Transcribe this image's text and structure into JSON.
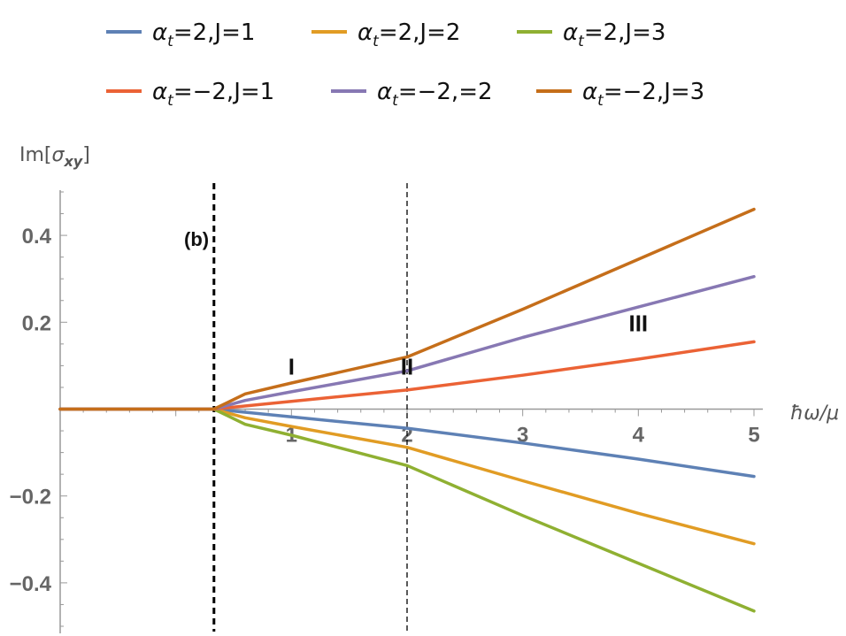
{
  "chart_data": {
    "type": "line",
    "xlabel": "ħω/μ",
    "ylabel": "Im[σxy]",
    "xlim": [
      -1.0,
      5.0
    ],
    "ylim": [
      -0.5,
      0.5
    ],
    "x_ticks": [
      1,
      2,
      3,
      4,
      5
    ],
    "y_ticks": [
      -0.4,
      -0.2,
      0.2,
      0.4
    ],
    "x_tick_labels": [
      "1",
      "2",
      "3",
      "4",
      "5"
    ],
    "y_tick_labels": [
      "−0.4",
      "−0.2",
      "0.2",
      "0.4"
    ],
    "grid": false,
    "legend_position": "top",
    "panel_label": "(b)",
    "region_labels": [
      {
        "text": "I",
        "x": 1.0,
        "y": 0.1
      },
      {
        "text": "II",
        "x": 2.0,
        "y": 0.1
      },
      {
        "text": "III",
        "x": 4.0,
        "y": 0.2
      }
    ],
    "vertical_lines": [
      {
        "x": 0.33,
        "style": "thick-dashed"
      },
      {
        "x": 2.0,
        "style": "thin-dashed"
      }
    ],
    "series": [
      {
        "name": "α_t=2,J=1",
        "color": "#5e81b5",
        "x": [
          -1.0,
          0.33,
          1.0,
          2.0,
          3.0,
          4.0,
          5.0
        ],
        "y": [
          0.0,
          0.0,
          -0.018,
          -0.044,
          -0.078,
          -0.115,
          -0.155
        ]
      },
      {
        "name": "α_t=2,J=2",
        "color": "#e19c24",
        "x": [
          -1.0,
          0.33,
          0.6,
          1.0,
          2.0,
          3.0,
          4.0,
          5.0
        ],
        "y": [
          0.0,
          0.0,
          -0.02,
          -0.04,
          -0.088,
          -0.165,
          -0.24,
          -0.31
        ]
      },
      {
        "name": "α_t=2,J=3",
        "color": "#8fb032",
        "x": [
          -1.0,
          0.33,
          0.6,
          1.0,
          2.0,
          3.0,
          4.0,
          5.0
        ],
        "y": [
          0.0,
          0.0,
          -0.035,
          -0.06,
          -0.13,
          -0.245,
          -0.355,
          -0.465
        ]
      },
      {
        "name": "α_t=−2,J=1",
        "color": "#eb6235",
        "x": [
          -1.0,
          0.33,
          1.0,
          2.0,
          3.0,
          4.0,
          5.0
        ],
        "y": [
          0.0,
          0.0,
          0.018,
          0.044,
          0.078,
          0.115,
          0.155
        ]
      },
      {
        "name": "α_t=−2,=2",
        "color": "#8778b3",
        "x": [
          -1.0,
          0.33,
          0.6,
          1.0,
          2.0,
          3.0,
          4.0,
          5.0
        ],
        "y": [
          0.0,
          0.0,
          0.02,
          0.04,
          0.088,
          0.165,
          0.235,
          0.305
        ]
      },
      {
        "name": "α_t=−2,J=3",
        "color": "#c56e1a",
        "x": [
          -1.0,
          0.33,
          0.6,
          1.0,
          2.0,
          3.0,
          4.0,
          5.0
        ],
        "y": [
          0.0,
          0.0,
          0.035,
          0.06,
          0.12,
          0.23,
          0.345,
          0.46
        ]
      }
    ]
  }
}
